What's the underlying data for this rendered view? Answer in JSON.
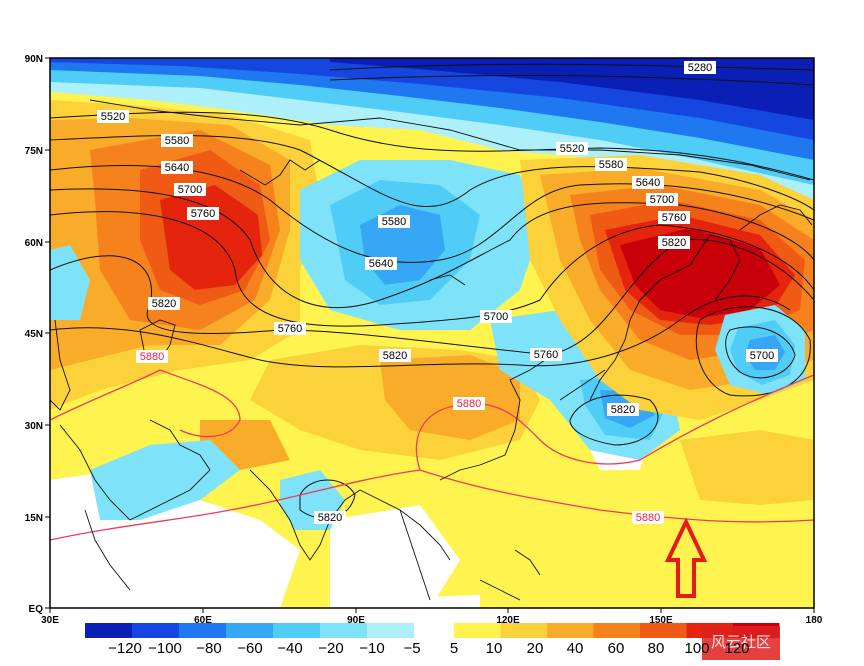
{
  "axes": {
    "lat_labels": [
      "90N",
      "75N",
      "60N",
      "45N",
      "30N",
      "15N",
      "EQ"
    ],
    "lon_labels": [
      "30E",
      "60E",
      "90E",
      "120E",
      "150E",
      "180"
    ]
  },
  "contours": {
    "black_labels": [
      "5280",
      "5520",
      "5580",
      "5640",
      "5700",
      "5760",
      "5520",
      "5580",
      "5640",
      "5700",
      "5760",
      "5820",
      "5580",
      "5640",
      "5700",
      "5760",
      "5820",
      "5760",
      "5820",
      "5700",
      "5820",
      "5820"
    ],
    "red_labels": [
      "5880",
      "5880",
      "5880"
    ]
  },
  "colorbar": {
    "neg_labels": [
      "−120",
      "−100",
      "−80",
      "−60",
      "−40",
      "−20",
      "−10",
      "−5"
    ],
    "pos_labels": [
      "5",
      "10",
      "20",
      "40",
      "60",
      "80",
      "100",
      "120"
    ],
    "neg_colors": [
      "#0a1fb5",
      "#1546e0",
      "#1f78f0",
      "#35a7f5",
      "#4fcdf7",
      "#7ee3f8",
      "#aef0fa"
    ],
    "pos_colors": [
      "#fff44f",
      "#fcd23a",
      "#f9ab2a",
      "#f6821e",
      "#ef5a14",
      "#e4240d",
      "#c8000a"
    ]
  },
  "watermark": "风云社区"
}
